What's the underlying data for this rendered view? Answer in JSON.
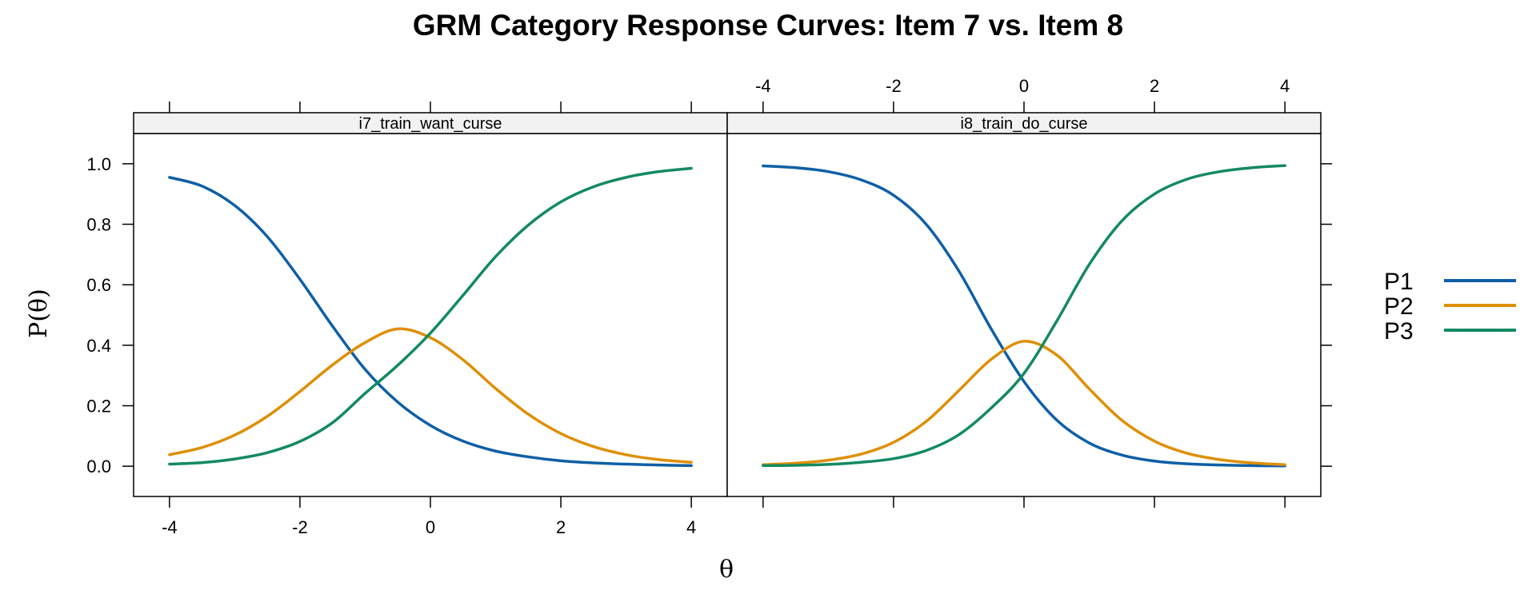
{
  "chart_data": {
    "type": "line",
    "title": "GRM Category Response Curves: Item 7 vs. Item 8",
    "xlabel": "θ",
    "ylabel": "P(θ)",
    "xlim": [
      -4.55,
      4.55
    ],
    "ylim": [
      -0.1,
      1.1
    ],
    "x_ticks": [
      "-4",
      "-2",
      "0",
      "2",
      "4"
    ],
    "x_tick_values": [
      -4,
      -2,
      0,
      2,
      4
    ],
    "y_ticks": [
      "0.0",
      "0.2",
      "0.4",
      "0.6",
      "0.8",
      "1.0"
    ],
    "y_tick_values": [
      0,
      0.2,
      0.4,
      0.6,
      0.8,
      1.0
    ],
    "grid": false,
    "legend_position": "right",
    "legend": [
      {
        "name": "P1",
        "color": "#0e5fa6"
      },
      {
        "name": "P2",
        "color": "#de8f05"
      },
      {
        "name": "P3",
        "color": "#138a5f"
      }
    ],
    "panels": [
      {
        "strip": "i7_train_want_curse",
        "x": [
          -4,
          -3.5,
          -3,
          -2.5,
          -2,
          -1.5,
          -1,
          -0.5,
          0,
          0.5,
          1,
          1.5,
          2,
          2.5,
          3,
          3.5,
          4
        ],
        "series": [
          {
            "name": "P1",
            "values": [
              0.955,
              0.926,
              0.862,
              0.759,
              0.618,
              0.463,
              0.32,
              0.212,
              0.135,
              0.083,
              0.05,
              0.031,
              0.018,
              0.011,
              0.007,
              0.004,
              0.002
            ]
          },
          {
            "name": "P2",
            "values": [
              0.038,
              0.062,
              0.103,
              0.165,
              0.247,
              0.335,
              0.409,
              0.454,
              0.425,
              0.352,
              0.257,
              0.172,
              0.108,
              0.065,
              0.038,
              0.022,
              0.013
            ]
          },
          {
            "name": "P3",
            "values": [
              0.007,
              0.012,
              0.024,
              0.045,
              0.082,
              0.144,
              0.241,
              0.334,
              0.44,
              0.565,
              0.693,
              0.797,
              0.874,
              0.924,
              0.955,
              0.974,
              0.985
            ]
          }
        ]
      },
      {
        "strip": "i8_train_do_curse",
        "x": [
          -4,
          -3.5,
          -3,
          -2.5,
          -2,
          -1.5,
          -1,
          -0.5,
          0,
          0.5,
          1,
          1.5,
          2,
          2.5,
          3,
          3.5,
          4
        ],
        "series": [
          {
            "name": "P1",
            "values": [
              0.993,
              0.987,
              0.974,
              0.947,
              0.896,
              0.8,
              0.646,
              0.453,
              0.28,
              0.153,
              0.077,
              0.037,
              0.017,
              0.008,
              0.004,
              0.002,
              0.001
            ]
          },
          {
            "name": "P2",
            "values": [
              0.005,
              0.01,
              0.02,
              0.04,
              0.079,
              0.148,
              0.25,
              0.354,
              0.413,
              0.368,
              0.256,
              0.152,
              0.083,
              0.043,
              0.022,
              0.011,
              0.005
            ]
          },
          {
            "name": "P3",
            "values": [
              0.002,
              0.003,
              0.006,
              0.013,
              0.025,
              0.052,
              0.104,
              0.193,
              0.307,
              0.479,
              0.667,
              0.811,
              0.9,
              0.949,
              0.974,
              0.987,
              0.994
            ]
          }
        ]
      }
    ]
  }
}
